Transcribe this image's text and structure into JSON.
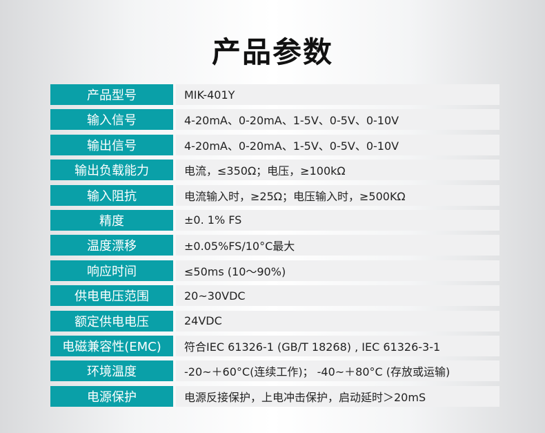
{
  "title": "产品参数",
  "colors": {
    "label_bg": "#0aa0a8",
    "value_bg": "#f0f0f1"
  },
  "rows": [
    {
      "label": "产品型号",
      "value": "MIK-401Y"
    },
    {
      "label": "输入信号",
      "value": "4-20mA、0-20mA、1-5V、0-5V、0-10V"
    },
    {
      "label": "输出信号",
      "value": "4-20mA、0-20mA、1-5V、0-5V、0-10V"
    },
    {
      "label": "输出负载能力",
      "value": "电流，≤350Ω；电压，≥100kΩ"
    },
    {
      "label": "输入阻抗",
      "value": "电流输入时，≥25Ω；电压输入时，≥500KΩ"
    },
    {
      "label": "精度",
      "value": " ±0. 1% FS"
    },
    {
      "label": "温度漂移",
      "value": "±0.05%FS/10°C最大"
    },
    {
      "label": "响应时间",
      "value": "≤50ms (10～90%)"
    },
    {
      "label": "供电电压范围",
      "value": "20~30VDC"
    },
    {
      "label": "额定供电电压",
      "value": "24VDC"
    },
    {
      "label": "电磁兼容性(EMC)",
      "value": "符合IEC 61326-1 (GB/T 18268) , IEC 61326-3-1"
    },
    {
      "label": "环境温度",
      "value": "-20~＋60°C(连续工作)； -40~＋80°C (存放或运输)"
    },
    {
      "label": "电源保护",
      "value": "电源反接保护，上电冲击保护，启动延时＞20mS"
    }
  ]
}
